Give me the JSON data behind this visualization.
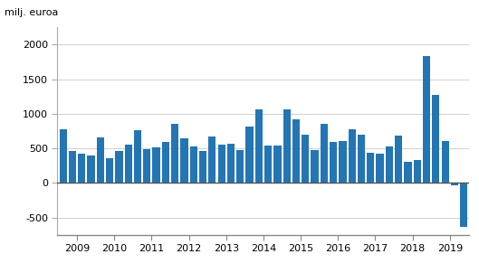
{
  "values": [
    780,
    460,
    420,
    400,
    660,
    360,
    460,
    550,
    760,
    490,
    510,
    590,
    850,
    640,
    530,
    460,
    670,
    550,
    560,
    470,
    820,
    1060,
    540,
    540,
    1060,
    920,
    700,
    480,
    850,
    590,
    600,
    770,
    700,
    440,
    420,
    530,
    680,
    310,
    330,
    1830,
    1270,
    600,
    -30,
    -640
  ],
  "bar_color": "#2475b4",
  "top_label": "milj. euroa",
  "year_labels": [
    "2009",
    "2010",
    "2011",
    "2012",
    "2013",
    "2014",
    "2015",
    "2016",
    "2017",
    "2018",
    "2019"
  ],
  "ylim": [
    -750,
    2250
  ],
  "yticks": [
    -500,
    0,
    500,
    1000,
    1500,
    2000
  ],
  "background_color": "#ffffff",
  "grid_color": "#d0d0d0"
}
